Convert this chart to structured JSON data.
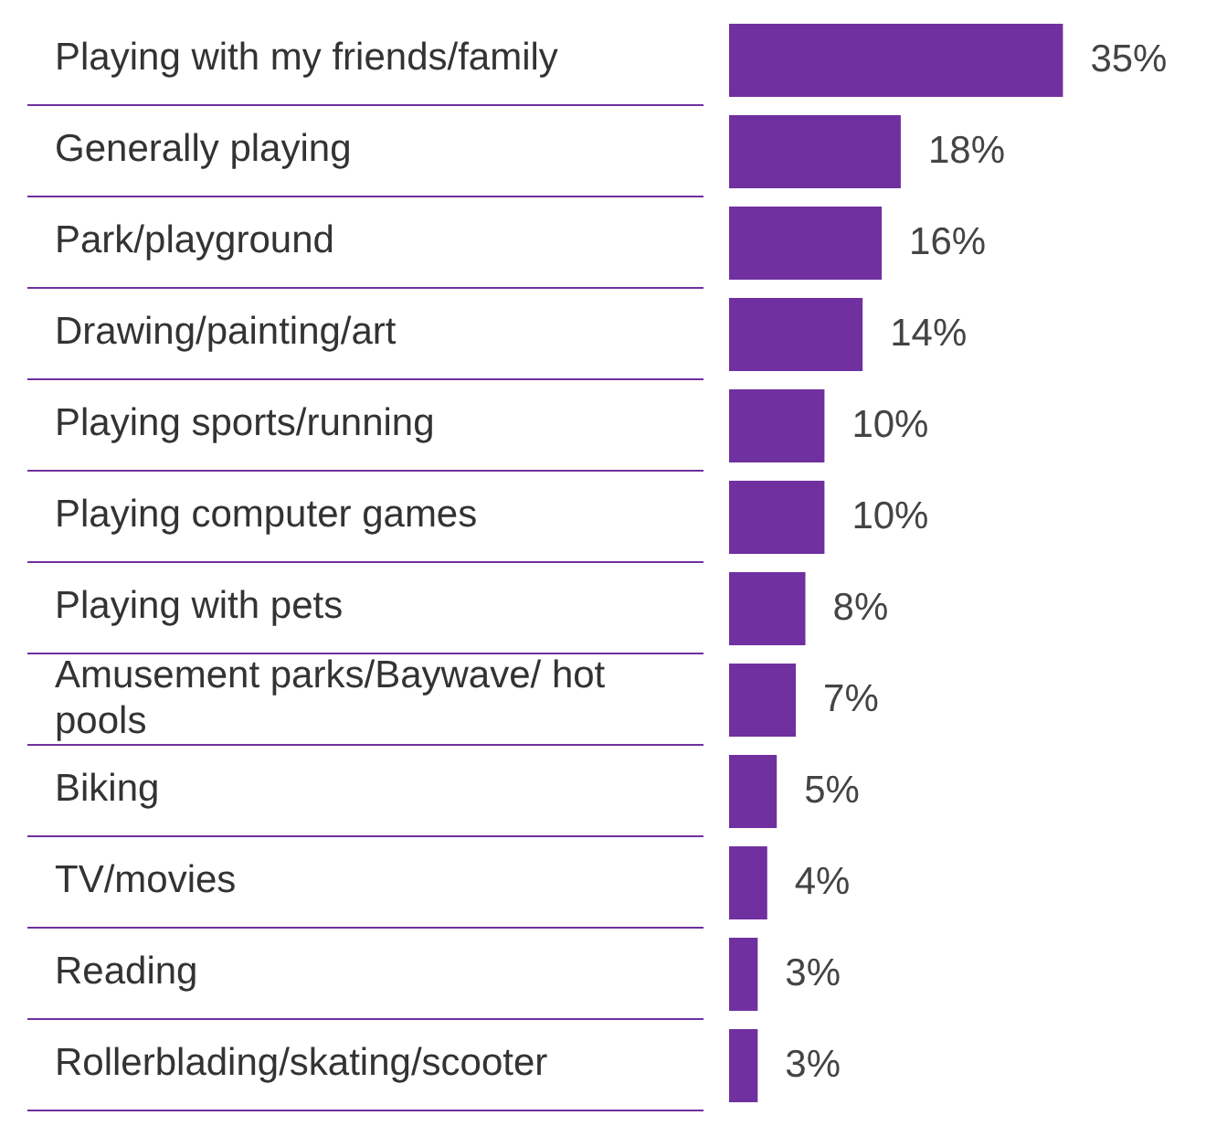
{
  "chart_data": {
    "type": "bar",
    "orientation": "horizontal",
    "categories": [
      "Playing with my friends/family",
      "Generally playing",
      "Park/playground",
      "Drawing/painting/art",
      "Playing sports/running",
      "Playing computer games",
      "Playing with pets",
      "Amusement parks/Baywave/ hot pools",
      "Biking",
      "TV/movies",
      "Reading",
      "Rollerblading/skating/scooter"
    ],
    "values": [
      35,
      18,
      16,
      14,
      10,
      10,
      8,
      7,
      5,
      4,
      3,
      3
    ],
    "value_labels": [
      "35%",
      "18%",
      "16%",
      "14%",
      "10%",
      "10%",
      "8%",
      "7%",
      "5%",
      "4%",
      "3%",
      "3%"
    ],
    "color": "#7030a0"
  }
}
